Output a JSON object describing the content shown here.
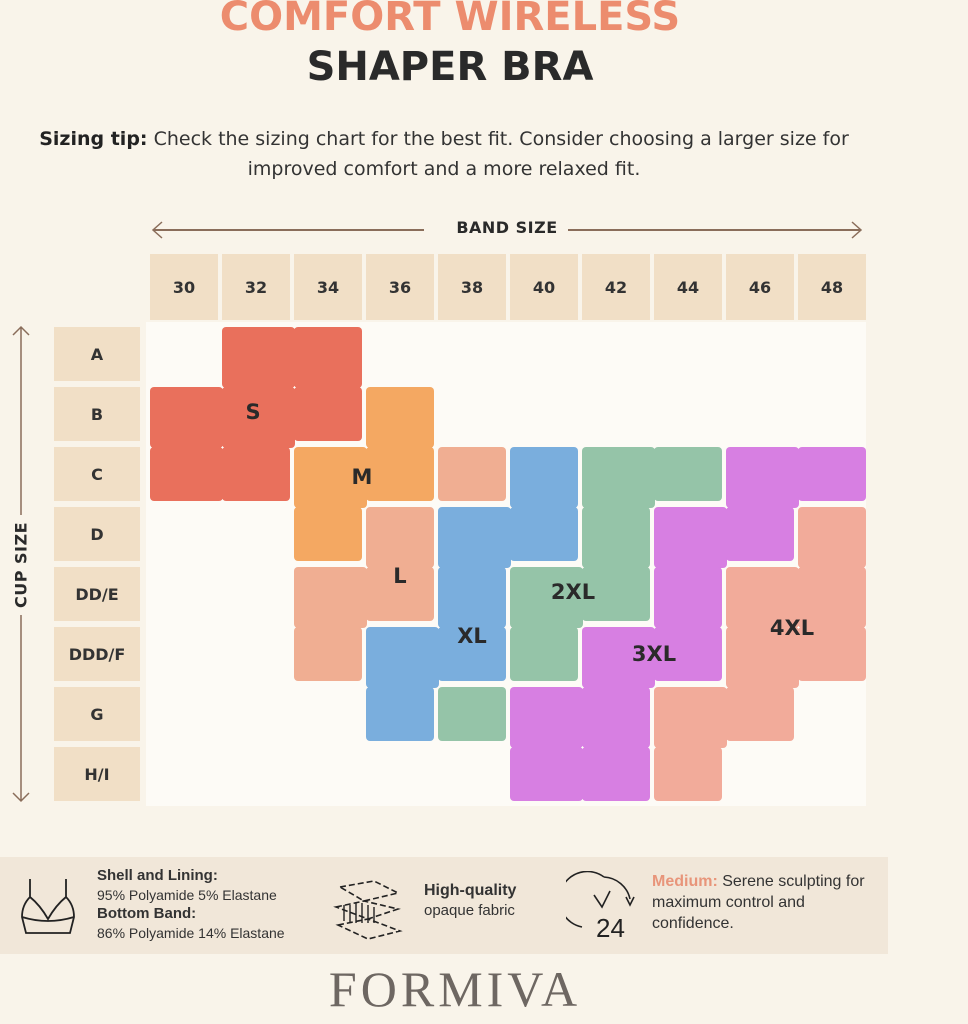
{
  "title": {
    "line1": "COMFORT WIRELESS",
    "line2": "SHAPER BRA"
  },
  "sizing_tip": {
    "label": "Sizing tip:",
    "text": "Check the sizing chart for the best fit. Consider choosing a larger size for improved comfort and a more relaxed fit."
  },
  "chart_data": {
    "type": "table",
    "x_axis_label": "BAND SIZE",
    "y_axis_label": "CUP SIZE",
    "band_sizes": [
      "30",
      "32",
      "34",
      "36",
      "38",
      "40",
      "42",
      "44",
      "46",
      "48"
    ],
    "cup_sizes": [
      "A",
      "B",
      "C",
      "D",
      "DD/E",
      "DDD/F",
      "G",
      "H/I"
    ],
    "sizes": [
      {
        "name": "S",
        "color": "#e9705c",
        "cells": [
          [
            "A",
            "32"
          ],
          [
            "A",
            "34"
          ],
          [
            "B",
            "30"
          ],
          [
            "B",
            "32"
          ],
          [
            "B",
            "34"
          ],
          [
            "C",
            "30"
          ],
          [
            "C",
            "32"
          ]
        ]
      },
      {
        "name": "M",
        "color": "#f4a862",
        "cells": [
          [
            "B",
            "36"
          ],
          [
            "C",
            "34"
          ],
          [
            "C",
            "36"
          ],
          [
            "D",
            "34"
          ]
        ]
      },
      {
        "name": "L",
        "color": "#f0ae92",
        "cells": [
          [
            "C",
            "38"
          ],
          [
            "D",
            "36"
          ],
          [
            "DD/E",
            "34"
          ],
          [
            "DD/E",
            "36"
          ],
          [
            "DDD/F",
            "34"
          ]
        ]
      },
      {
        "name": "XL",
        "color": "#7aaedd",
        "cells": [
          [
            "C",
            "40"
          ],
          [
            "D",
            "38"
          ],
          [
            "D",
            "40"
          ],
          [
            "DD/E",
            "38"
          ],
          [
            "DDD/F",
            "36"
          ],
          [
            "DDD/F",
            "38"
          ],
          [
            "G",
            "36"
          ]
        ]
      },
      {
        "name": "2XL",
        "color": "#95c4a8",
        "cells": [
          [
            "C",
            "42"
          ],
          [
            "C",
            "44"
          ],
          [
            "D",
            "42"
          ],
          [
            "DD/E",
            "40"
          ],
          [
            "DD/E",
            "42"
          ],
          [
            "DDD/F",
            "40"
          ],
          [
            "G",
            "38"
          ]
        ]
      },
      {
        "name": "3XL",
        "color": "#d77fe2",
        "cells": [
          [
            "C",
            "46"
          ],
          [
            "C",
            "48"
          ],
          [
            "D",
            "44"
          ],
          [
            "D",
            "46"
          ],
          [
            "DD/E",
            "44"
          ],
          [
            "DDD/F",
            "42"
          ],
          [
            "DDD/F",
            "44"
          ],
          [
            "G",
            "40"
          ],
          [
            "G",
            "42"
          ],
          [
            "H/I",
            "40"
          ],
          [
            "H/I",
            "42"
          ]
        ]
      },
      {
        "name": "4XL",
        "color": "#f2ab9a",
        "cells": [
          [
            "D",
            "48"
          ],
          [
            "DD/E",
            "46"
          ],
          [
            "DD/E",
            "48"
          ],
          [
            "DDD/F",
            "46"
          ],
          [
            "DDD/F",
            "48"
          ],
          [
            "G",
            "44"
          ],
          [
            "G",
            "46"
          ],
          [
            "H/I",
            "44"
          ]
        ]
      }
    ]
  },
  "features": {
    "material": {
      "icon": "bra-icon",
      "shell_label": "Shell and Lining:",
      "shell_value": "95% Polyamide 5% Elastane",
      "band_label": "Bottom Band:",
      "band_value": "86% Polyamide 14% Elastane"
    },
    "fabric": {
      "icon": "fabric-layers-icon",
      "title": "High-quality",
      "text": "opaque fabric"
    },
    "support": {
      "icon": "clock-24-icon",
      "icon_text": "24",
      "label": "Medium:",
      "text": "Serene sculpting for maximum control and confidence."
    }
  },
  "brand": "FORMIVA",
  "colors": {
    "title_accent": "#ec8c6e",
    "header_cell": "#f1dfc6",
    "background": "#f9f4ea"
  }
}
